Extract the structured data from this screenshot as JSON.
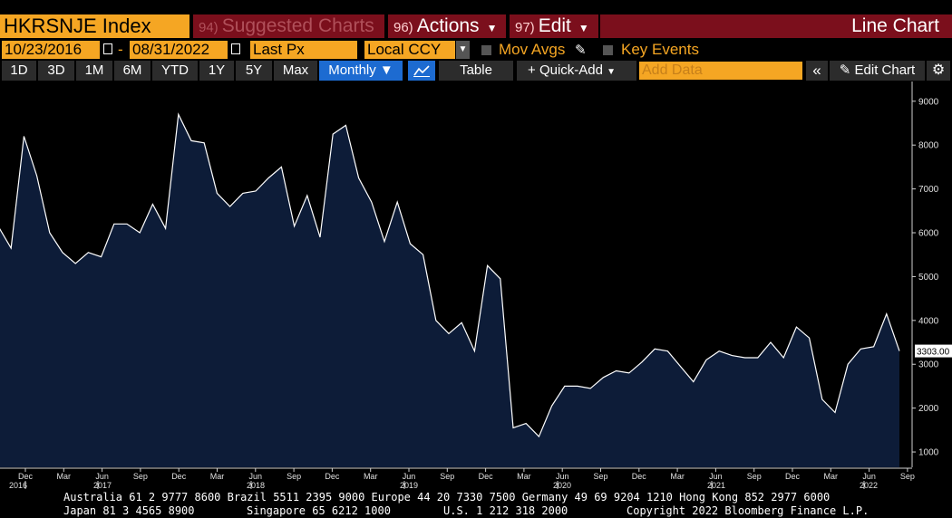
{
  "header": {
    "ticker": "HKRSNJE Index",
    "suggested": {
      "num": "94)",
      "label": "Suggested Charts"
    },
    "actions": {
      "num": "96)",
      "label": "Actions"
    },
    "edit": {
      "num": "97)",
      "label": "Edit"
    },
    "view_title": "Line Chart"
  },
  "controls": {
    "start_date": "10/23/2016",
    "separator": "-",
    "end_date": "08/31/2022",
    "field": "Last Px",
    "currency": "Local CCY",
    "mov_avgs": "Mov Avgs",
    "key_events": "Key Events"
  },
  "toolbar": {
    "ranges": [
      "1D",
      "3D",
      "1M",
      "6M",
      "YTD",
      "1Y",
      "5Y",
      "Max"
    ],
    "period": "Monthly ▼",
    "table": "Table",
    "quick_add": "Quick-Add",
    "add_data_placeholder": "Add Data",
    "edit_chart": "Edit Chart"
  },
  "colors": {
    "accent": "#f5a623",
    "header_red": "#7b0f1c",
    "active_blue": "#1d6bd1",
    "area_fill": "#0d1c38",
    "line": "#ffffff"
  },
  "chart_data": {
    "type": "area",
    "title": "",
    "series": [
      {
        "values": [
          6150,
          5650,
          8200,
          7300,
          6000,
          5550,
          5300,
          5550,
          5450,
          6200,
          6200,
          6000,
          6650,
          6100,
          8700,
          8100,
          8050,
          6900,
          6600,
          6900,
          6950,
          7250,
          7500,
          6150,
          6850,
          5900,
          8250,
          8450,
          7250,
          6700,
          5800,
          6700,
          5750,
          5500,
          4000,
          3700,
          3950,
          3300,
          5250,
          4950,
          1550,
          1650,
          1350,
          2050,
          2500,
          2500,
          2450,
          2700,
          2850,
          2800,
          3050,
          3350,
          3300,
          2950,
          2600,
          3100,
          3300,
          3200,
          3150,
          3150,
          3500,
          3150,
          3850,
          3600,
          2200,
          1900,
          3000,
          3350,
          3400,
          4150,
          3303
        ]
      }
    ],
    "last_value_label": "3303.00",
    "y_ticks": [
      1000,
      2000,
      3000,
      4000,
      5000,
      6000,
      7000,
      8000,
      9000
    ],
    "ylim": [
      650,
      9450
    ],
    "x_month_labels": [
      "Dec",
      "Mar",
      "Jun",
      "Sep",
      "Dec",
      "Mar",
      "Jun",
      "Sep",
      "Dec",
      "Mar",
      "Jun",
      "Sep",
      "Dec",
      "Mar",
      "Jun",
      "Sep",
      "Dec",
      "Mar",
      "Jun",
      "Sep",
      "Dec",
      "Mar",
      "Jun",
      "Sep"
    ],
    "x_year_labels": [
      "2016",
      "2017",
      "2018",
      "2019",
      "2020",
      "2021",
      "2022"
    ],
    "grid": false
  },
  "footer": {
    "line1": "Australia 61 2 9777 8600 Brazil 5511 2395 9000 Europe 44 20 7330 7500 Germany 49 69 9204 1210 Hong Kong 852 2977 6000",
    "line2a": "Japan 81 3 4565 8900",
    "line2b": "Singapore 65 6212 1000",
    "line2c": "U.S. 1 212 318 2000",
    "line2d": "Copyright 2022 Bloomberg Finance L.P."
  }
}
